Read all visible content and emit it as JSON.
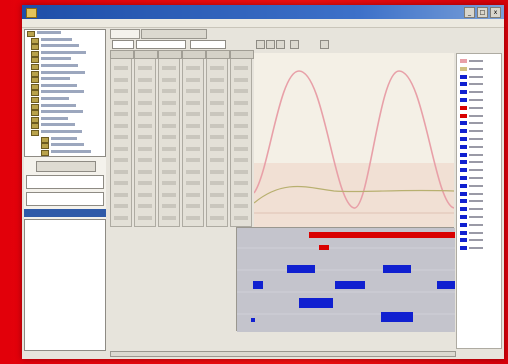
{
  "window": {
    "title": "",
    "controls": [
      "_",
      "□",
      "x"
    ]
  },
  "menu": [
    "",
    "",
    "",
    ""
  ],
  "colors": {
    "frame": "#e8000a",
    "titlebar": "#2a5cb4",
    "curve_a": "#e8a0a8",
    "curve_b": "#b8b070",
    "red_bar": "#d90000",
    "blue_bar": "#1020d0",
    "plot_bg": "#f6ece0",
    "lower_bg": "#c5c5cc"
  },
  "tabs": [
    "",
    ""
  ],
  "legend_items": [
    {
      "color": "#e8a0a8"
    },
    {
      "color": "#d0c080"
    },
    {
      "color": "#1020d0"
    },
    {
      "color": "#1020d0"
    },
    {
      "color": "#1020d0"
    },
    {
      "color": "#1020d0"
    },
    {
      "color": "#d90000"
    },
    {
      "color": "#d90000"
    },
    {
      "color": "#1020d0"
    },
    {
      "color": "#1020d0"
    },
    {
      "color": "#1020d0"
    },
    {
      "color": "#1020d0"
    },
    {
      "color": "#1020d0"
    },
    {
      "color": "#1020d0"
    },
    {
      "color": "#1020d0"
    },
    {
      "color": "#1020d0"
    },
    {
      "color": "#1020d0"
    },
    {
      "color": "#1020d0"
    },
    {
      "color": "#1020d0"
    },
    {
      "color": "#1020d0"
    },
    {
      "color": "#1020d0"
    },
    {
      "color": "#1020d0"
    },
    {
      "color": "#1020d0"
    },
    {
      "color": "#1020d0"
    },
    {
      "color": "#1020d0"
    }
  ],
  "tree_items": 19,
  "table_columns": 6,
  "table_rows": 14
}
